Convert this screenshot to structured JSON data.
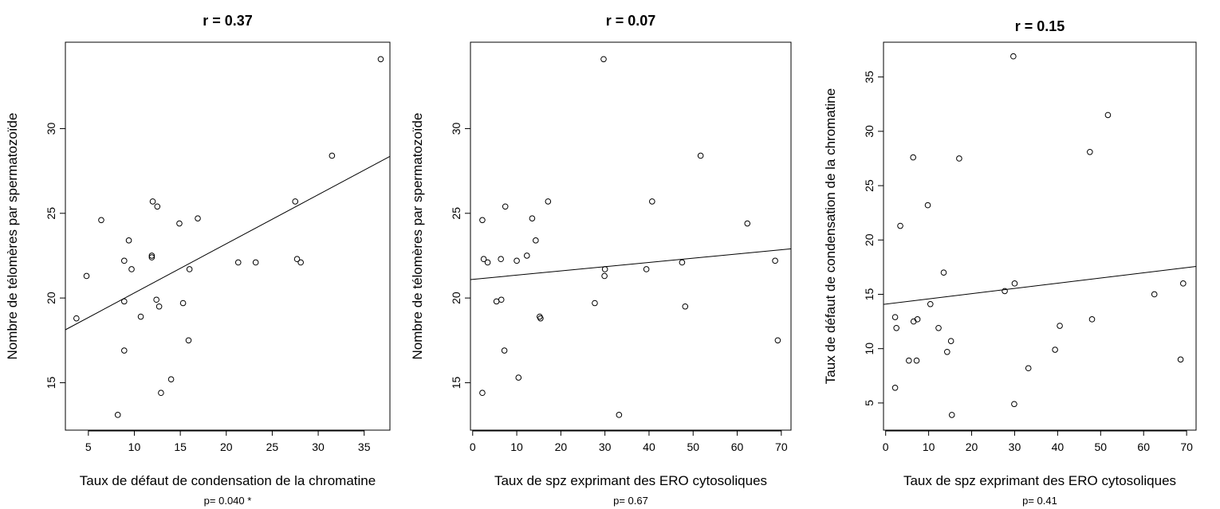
{
  "colors": {
    "points": "#000000",
    "line": "#000000",
    "frame": "#000000"
  },
  "chart_data": [
    {
      "type": "scatter",
      "title_prefix": "r = ",
      "title_value": "0.37",
      "xlabel": "Taux de défaut de condensation de la chromatine",
      "ylabel": "Nombre de télomères par spermatozoïde",
      "footnote": "p= 0.040  *",
      "xlim": [
        2.5,
        37.8
      ],
      "ylim": [
        12.2,
        35.1
      ],
      "xticks": [
        5,
        10,
        15,
        20,
        25,
        30,
        35
      ],
      "yticks": [
        15,
        20,
        25,
        30
      ],
      "trend": {
        "intercept": 17.4,
        "slope": 0.29
      },
      "points": [
        {
          "x": 3.7,
          "y": 18.8
        },
        {
          "x": 4.8,
          "y": 21.3
        },
        {
          "x": 6.4,
          "y": 24.6
        },
        {
          "x": 8.9,
          "y": 22.2
        },
        {
          "x": 9.4,
          "y": 23.4
        },
        {
          "x": 9.7,
          "y": 21.7
        },
        {
          "x": 8.9,
          "y": 19.8
        },
        {
          "x": 8.9,
          "y": 16.9
        },
        {
          "x": 8.2,
          "y": 13.1
        },
        {
          "x": 10.7,
          "y": 18.9
        },
        {
          "x": 12.0,
          "y": 25.7
        },
        {
          "x": 12.5,
          "y": 25.4
        },
        {
          "x": 11.9,
          "y": 22.5
        },
        {
          "x": 11.9,
          "y": 22.4
        },
        {
          "x": 12.4,
          "y": 19.9
        },
        {
          "x": 12.7,
          "y": 19.5
        },
        {
          "x": 12.9,
          "y": 14.4
        },
        {
          "x": 14.0,
          "y": 15.2
        },
        {
          "x": 14.9,
          "y": 24.4
        },
        {
          "x": 15.3,
          "y": 19.7
        },
        {
          "x": 16.0,
          "y": 21.7
        },
        {
          "x": 15.9,
          "y": 17.5
        },
        {
          "x": 16.9,
          "y": 24.7
        },
        {
          "x": 21.3,
          "y": 22.1
        },
        {
          "x": 23.2,
          "y": 22.1
        },
        {
          "x": 27.5,
          "y": 25.7
        },
        {
          "x": 27.7,
          "y": 22.3
        },
        {
          "x": 28.1,
          "y": 22.1
        },
        {
          "x": 31.5,
          "y": 28.4
        },
        {
          "x": 36.8,
          "y": 34.1
        }
      ]
    },
    {
      "type": "scatter",
      "title_prefix": "r = ",
      "title_value": "0.07",
      "xlabel": "Taux de spz exprimant des ERO cytosoliques",
      "ylabel": "Nombre de télomères par spermatozoïde",
      "footnote": "p=  0.67",
      "xlim": [
        -0.5,
        72.2
      ],
      "ylim": [
        12.2,
        35.1
      ],
      "xticks": [
        0,
        10,
        20,
        30,
        40,
        50,
        60,
        70
      ],
      "yticks": [
        15,
        20,
        25,
        30
      ],
      "trend": {
        "intercept": 21.1,
        "slope": 0.025
      },
      "points": [
        {
          "x": 2.2,
          "y": 24.6
        },
        {
          "x": 2.5,
          "y": 22.3
        },
        {
          "x": 3.4,
          "y": 22.1
        },
        {
          "x": 2.2,
          "y": 14.4
        },
        {
          "x": 5.4,
          "y": 19.8
        },
        {
          "x": 6.5,
          "y": 19.9
        },
        {
          "x": 6.4,
          "y": 22.3
        },
        {
          "x": 7.4,
          "y": 25.4
        },
        {
          "x": 7.2,
          "y": 16.9
        },
        {
          "x": 10.0,
          "y": 22.2
        },
        {
          "x": 10.4,
          "y": 15.3
        },
        {
          "x": 12.3,
          "y": 22.5
        },
        {
          "x": 13.5,
          "y": 24.7
        },
        {
          "x": 14.3,
          "y": 23.4
        },
        {
          "x": 15.2,
          "y": 18.9
        },
        {
          "x": 15.4,
          "y": 18.8
        },
        {
          "x": 17.1,
          "y": 25.7
        },
        {
          "x": 27.7,
          "y": 19.7
        },
        {
          "x": 29.7,
          "y": 34.1
        },
        {
          "x": 30.0,
          "y": 21.7
        },
        {
          "x": 29.9,
          "y": 21.3
        },
        {
          "x": 33.2,
          "y": 13.1
        },
        {
          "x": 39.4,
          "y": 21.7
        },
        {
          "x": 40.7,
          "y": 25.7
        },
        {
          "x": 47.5,
          "y": 22.1
        },
        {
          "x": 48.2,
          "y": 19.5
        },
        {
          "x": 51.7,
          "y": 28.4
        },
        {
          "x": 62.3,
          "y": 24.4
        },
        {
          "x": 68.6,
          "y": 22.2
        },
        {
          "x": 69.2,
          "y": 17.5
        }
      ]
    },
    {
      "type": "scatter",
      "title_prefix": "r = ",
      "title_value": "0.15",
      "xlabel": "Taux de spz exprimant des ERO cytosoliques",
      "ylabel": "Taux de défaut de condensation de la chromatine",
      "footnote": "p= 0.41",
      "xlim": [
        -0.5,
        72.2
      ],
      "ylim": [
        2.5,
        38.2
      ],
      "xticks": [
        0,
        10,
        20,
        30,
        40,
        50,
        60,
        70
      ],
      "yticks": [
        5,
        10,
        15,
        20,
        25,
        30,
        35
      ],
      "trend": {
        "intercept": 14.1,
        "slope": 0.048
      },
      "points": [
        {
          "x": 2.2,
          "y": 12.9
        },
        {
          "x": 2.5,
          "y": 11.9
        },
        {
          "x": 2.2,
          "y": 6.4
        },
        {
          "x": 3.4,
          "y": 21.3
        },
        {
          "x": 5.4,
          "y": 8.9
        },
        {
          "x": 6.4,
          "y": 27.6
        },
        {
          "x": 6.5,
          "y": 12.5
        },
        {
          "x": 7.2,
          "y": 8.9
        },
        {
          "x": 7.4,
          "y": 12.7
        },
        {
          "x": 9.8,
          "y": 23.2
        },
        {
          "x": 10.4,
          "y": 14.1
        },
        {
          "x": 12.3,
          "y": 11.9
        },
        {
          "x": 13.5,
          "y": 17.0
        },
        {
          "x": 14.3,
          "y": 9.7
        },
        {
          "x": 15.2,
          "y": 10.7
        },
        {
          "x": 15.4,
          "y": 3.9
        },
        {
          "x": 17.1,
          "y": 27.5
        },
        {
          "x": 27.7,
          "y": 15.3
        },
        {
          "x": 29.7,
          "y": 36.9
        },
        {
          "x": 30.0,
          "y": 16.0
        },
        {
          "x": 29.9,
          "y": 4.9
        },
        {
          "x": 33.2,
          "y": 8.2
        },
        {
          "x": 39.4,
          "y": 9.9
        },
        {
          "x": 40.5,
          "y": 12.1
        },
        {
          "x": 47.5,
          "y": 28.1
        },
        {
          "x": 48.0,
          "y": 12.7
        },
        {
          "x": 51.7,
          "y": 31.5
        },
        {
          "x": 62.5,
          "y": 15.0
        },
        {
          "x": 68.6,
          "y": 9.0
        },
        {
          "x": 69.2,
          "y": 16.0
        }
      ]
    }
  ]
}
